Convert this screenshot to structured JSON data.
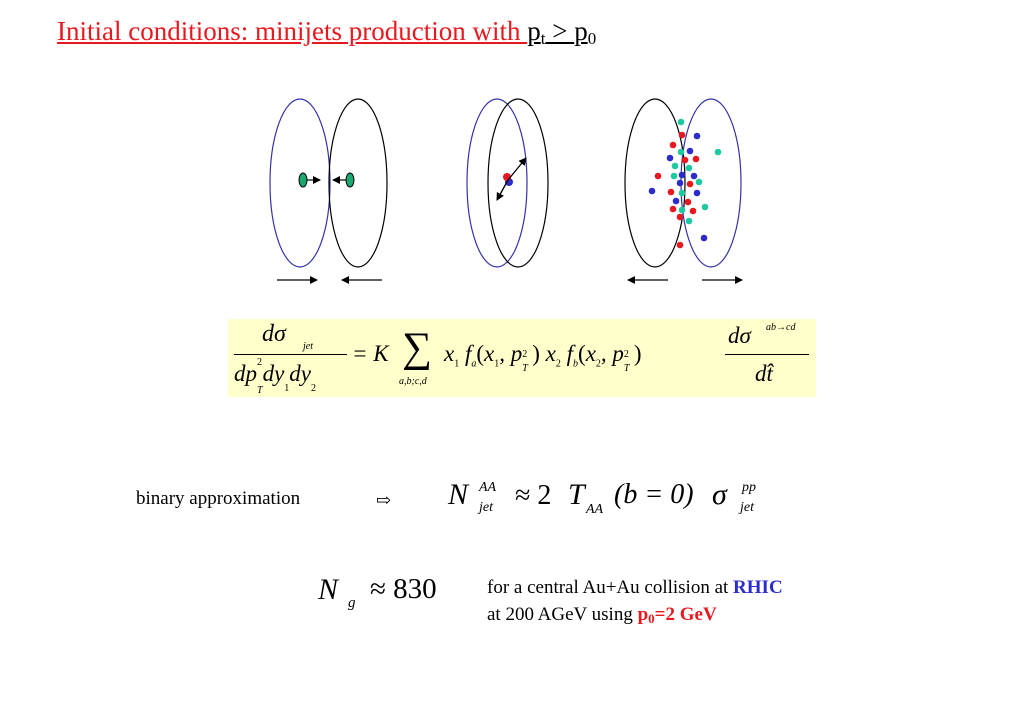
{
  "title": {
    "text": "Initial conditions: minijets production with ",
    "pt_base": "p",
    "pt_sub": "t",
    "gt": " > ",
    "p0_base": "p",
    "p0_sub": "0"
  },
  "formula": {
    "d_sigma": "dσ",
    "jet_sub": "jet",
    "denominator_parts": [
      "dp",
      "2",
      "T",
      "dy",
      "1",
      "dy",
      "2"
    ],
    "equals_K": "= K",
    "sum_symbol": "∑",
    "sum_sub": "a,b;c,d",
    "x1": "x",
    "sub1": "1",
    "fa": "f",
    "a_sub": "a",
    "paren1": "(x",
    "comma_p": ", p",
    "pT2_sup": "2",
    "pT2_sub": "T",
    "close": ")",
    "x2": "x",
    "sub2": "2",
    "fb": "f",
    "b_sub": "b",
    "paren2": "(x",
    "right_num": "dσ",
    "right_sup": "ab→cd",
    "right_den": "dt̂"
  },
  "binary": {
    "label": "binary approximation",
    "arrow": "⇨",
    "N": "N",
    "AA_sup": "AA",
    "jet_sub": "jet",
    "approx": "≈ 2",
    "T": "T",
    "T_sub": "AA",
    "b_expr": "(b = 0)",
    "sigma": "σ",
    "pp_sup": "pp",
    "jet_sub2": "jet"
  },
  "ng": {
    "N": "N",
    "g_sub": "g",
    "approx": "≈ 830"
  },
  "note": {
    "line1_prefix": "for a central Au+Au collision at ",
    "rhic": "RHIC",
    "line2_prefix": "at 200 AGeV using ",
    "p0_base": "p",
    "p0_sub": "0",
    "p0_value": "=2 GeV"
  },
  "colors": {
    "red": "#e8191e",
    "blue": "#2c2ccc",
    "teal": "#1ec8a0",
    "box": "#ffffcc",
    "nucleus_blue": "#3333aa"
  }
}
